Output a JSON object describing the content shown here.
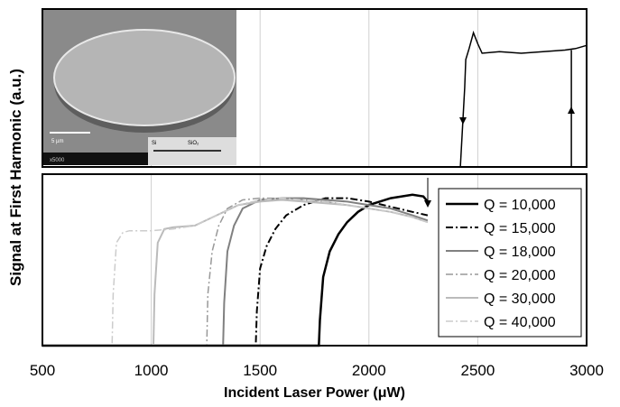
{
  "chart_data": [
    {
      "type": "line",
      "xlim": [
        500,
        3000
      ],
      "ylim": [
        0,
        10
      ],
      "inset": {
        "scale": "5 µm",
        "labels": [
          "Si",
          "SiO₂"
        ],
        "magnification": "x5000"
      },
      "series": [
        {
          "color": "#000000",
          "x": [
            2420,
            2440,
            2445,
            2460,
            2480,
            2500,
            2520,
            2600,
            2700,
            2800,
            2900,
            2950,
            3000
          ],
          "values": [
            0,
            5,
            6.8,
            7.5,
            8.5,
            7.8,
            7.2,
            7.3,
            7.2,
            7.3,
            7.4,
            7.5,
            7.7
          ]
        },
        {
          "color": "#000000",
          "x": [
            2930,
            2930
          ],
          "values": [
            0,
            7.4
          ]
        }
      ]
    },
    {
      "type": "line",
      "xlabel": "Incident Laser Power (μW)",
      "ylabel": "Signal at First Harmonic (a.u.)",
      "xlim": [
        500,
        3000
      ],
      "ylim": [
        0,
        10
      ],
      "xticks": [
        500,
        1000,
        1500,
        2000,
        2500,
        3000
      ],
      "legend": "upper right",
      "series": [
        {
          "name": "Q = 10,000",
          "color": "#000000",
          "dash": "solid",
          "width": 2.5,
          "x": [
            500,
            1770,
            1775,
            1790,
            1820,
            1860,
            1900,
            1950,
            2000,
            2100,
            2200,
            2250,
            2270
          ],
          "values": [
            0,
            0,
            1.5,
            4,
            5.5,
            6.5,
            7.2,
            7.8,
            8.2,
            8.6,
            8.8,
            8.7,
            8.4
          ]
        },
        {
          "name": "Q = 15,000",
          "color": "#000000",
          "dash": "dash-dot",
          "width": 2,
          "x": [
            500,
            1480,
            1485,
            1500,
            1530,
            1570,
            1620,
            1700,
            1800,
            1900,
            2000,
            2100,
            2200,
            2270
          ],
          "values": [
            0,
            0,
            2,
            4.5,
            5.8,
            6.8,
            7.6,
            8.2,
            8.6,
            8.6,
            8.4,
            8.1,
            7.8,
            7.6
          ]
        },
        {
          "name": "Q = 18,000",
          "color": "#808080",
          "dash": "solid",
          "width": 2,
          "x": [
            500,
            1330,
            1335,
            1350,
            1380,
            1420,
            1500,
            1600,
            1700,
            1800,
            1900,
            2000,
            2100,
            2200,
            2270
          ],
          "values": [
            0,
            0,
            2.5,
            5.5,
            7,
            8,
            8.5,
            8.6,
            8.6,
            8.5,
            8.4,
            8.2,
            8,
            7.6,
            7.3
          ]
        },
        {
          "name": "Q = 20,000",
          "color": "#999999",
          "dash": "dash-dot",
          "width": 1.5,
          "x": [
            500,
            1255,
            1260,
            1280,
            1310,
            1350,
            1420,
            1500,
            1600,
            1700,
            1800,
            1900,
            2000,
            2100,
            2200,
            2270
          ],
          "values": [
            0,
            0,
            3,
            5.5,
            7,
            8,
            8.5,
            8.6,
            8.6,
            8.5,
            8.4,
            8.2,
            8,
            7.8,
            7.5,
            7.2
          ]
        },
        {
          "name": "Q = 30,000",
          "color": "#bbbbbb",
          "dash": "solid",
          "width": 2,
          "x": [
            500,
            1010,
            1015,
            1030,
            1060,
            1100,
            1200,
            1300,
            1400,
            1500,
            1600,
            1700,
            1800,
            1900,
            2000,
            2100,
            2200,
            2270
          ],
          "values": [
            0,
            0,
            3,
            6,
            6.8,
            6.9,
            7,
            7.6,
            8.2,
            8.4,
            8.5,
            8.4,
            8.3,
            8.2,
            8,
            7.8,
            7.5,
            7.2
          ]
        },
        {
          "name": "Q = 40,000",
          "color": "#cccccc",
          "dash": "dash-dot",
          "width": 1.5,
          "x": [
            500,
            820,
            825,
            840,
            870,
            900,
            1000,
            1100,
            1200,
            1300,
            1400,
            1500,
            1600,
            1700,
            1800,
            1900,
            2000,
            2100,
            2200,
            2270
          ],
          "values": [
            0,
            0,
            3,
            6,
            6.6,
            6.7,
            6.7,
            6.8,
            7,
            7.6,
            8.2,
            8.5,
            8.6,
            8.5,
            8.4,
            8.2,
            8,
            7.8,
            7.5,
            7.2
          ]
        }
      ]
    }
  ]
}
